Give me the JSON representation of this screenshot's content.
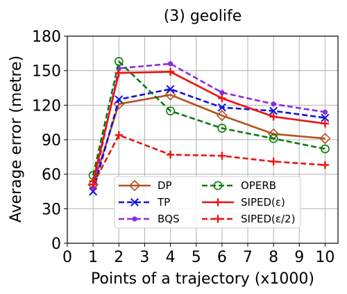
{
  "chart_data": {
    "type": "line",
    "title": "(3) geolife",
    "xlabel": "Points of a trajectory (x1000)",
    "ylabel": "Average error (metre)",
    "xlim": [
      0,
      10.5
    ],
    "ylim": [
      0,
      180
    ],
    "xticks": [
      0,
      1,
      2,
      3,
      4,
      5,
      6,
      7,
      8,
      9,
      10
    ],
    "yticks": [
      0,
      30,
      60,
      90,
      120,
      150,
      180
    ],
    "grid": true,
    "legend_position": "lower-center",
    "x": [
      1,
      2,
      4,
      6,
      8,
      10
    ],
    "series": [
      {
        "name": "DP",
        "color": "#b5521f",
        "dash": "solid",
        "marker": "diamond-open",
        "values": [
          51,
          121,
          129,
          111,
          95,
          91
        ]
      },
      {
        "name": "TP",
        "color": "#1010e0",
        "dash": "dashed",
        "marker": "x",
        "values": [
          45,
          125,
          134,
          118,
          115,
          109
        ]
      },
      {
        "name": "BQS",
        "color": "#8a2be2",
        "dash": "dashed",
        "marker": "dot",
        "values": [
          48,
          152,
          156,
          131,
          121,
          114
        ]
      },
      {
        "name": "OPERB",
        "color": "#0a7a0a",
        "dash": "dashed",
        "marker": "circle-open",
        "values": [
          59,
          158,
          115,
          100,
          91,
          82
        ]
      },
      {
        "name": "SIPED(ε)",
        "color": "#ee1111",
        "dash": "solid",
        "marker": "plus",
        "values": [
          54,
          148,
          149,
          126,
          110,
          104
        ]
      },
      {
        "name": "SIPED(ε/2)",
        "color": "#ee1111",
        "dash": "dashed",
        "marker": "plus",
        "values": [
          51,
          94,
          77,
          76,
          71,
          68
        ]
      }
    ]
  }
}
